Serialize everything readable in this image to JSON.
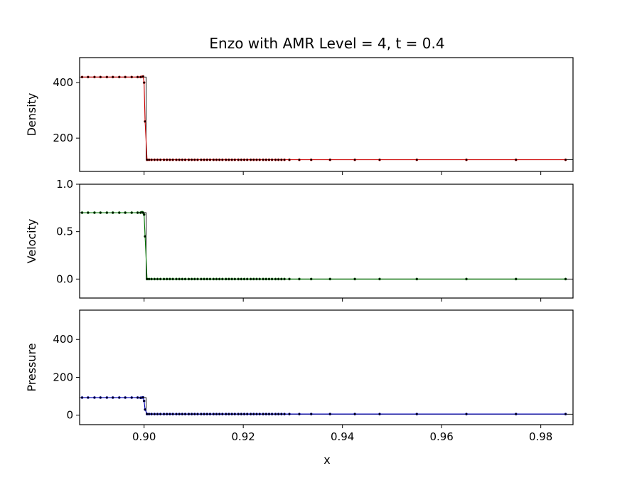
{
  "figure": {
    "title": "Enzo with AMR Level = 4, t = 0.4",
    "xlabel": "x"
  },
  "chart_data": [
    {
      "type": "line",
      "ylabel": "Density",
      "xlim": [
        0.887,
        0.9865
      ],
      "ylim": [
        80,
        490
      ],
      "xticks": [
        0.9,
        0.92,
        0.94,
        0.96,
        0.98
      ],
      "yticks": [
        200,
        400
      ],
      "color": "#cc0000",
      "exact": {
        "x": [
          0.887,
          0.9004,
          0.9004,
          0.9865
        ],
        "y": [
          420,
          420,
          122,
          122
        ]
      },
      "series": [
        {
          "x": [
            0.8875,
            0.8887,
            0.89,
            0.8912,
            0.8925,
            0.8937,
            0.895,
            0.8962,
            0.8975,
            0.8987,
            0.8993,
            0.8996,
            0.8998,
            0.9,
            0.9002,
            0.9006,
            0.901,
            0.9015,
            0.9021,
            0.9027,
            0.9033,
            0.904,
            0.9046,
            0.9052,
            0.9058,
            0.9065,
            0.9071,
            0.9077,
            0.9083,
            0.909,
            0.9096,
            0.9102,
            0.9108,
            0.9115,
            0.9121,
            0.9127,
            0.9133,
            0.914,
            0.9146,
            0.9152,
            0.9158,
            0.9165,
            0.9171,
            0.9177,
            0.9183,
            0.919,
            0.9196,
            0.9202,
            0.9208,
            0.9215,
            0.9221,
            0.9227,
            0.9233,
            0.924,
            0.9246,
            0.9252,
            0.9258,
            0.9265,
            0.9271,
            0.9277,
            0.9283,
            0.9293,
            0.9313,
            0.9337,
            0.9375,
            0.9425,
            0.9475,
            0.955,
            0.965,
            0.975,
            0.985
          ],
          "y": [
            420,
            420,
            420,
            420,
            420,
            420,
            420,
            420,
            420,
            420,
            420,
            421,
            422,
            400,
            260,
            122,
            122,
            122,
            122,
            122,
            122,
            122,
            122,
            122,
            122,
            122,
            122,
            122,
            122,
            122,
            122,
            122,
            122,
            122,
            122,
            122,
            122,
            122,
            122,
            122,
            122,
            122,
            122,
            122,
            122,
            122,
            122,
            122,
            122,
            122,
            122,
            122,
            122,
            122,
            122,
            122,
            122,
            122,
            122,
            122,
            122,
            122,
            122,
            122,
            122,
            122,
            122,
            122,
            122,
            122,
            122
          ]
        }
      ]
    },
    {
      "type": "line",
      "ylabel": "Velocity",
      "xlim": [
        0.887,
        0.9865
      ],
      "ylim": [
        -0.2,
        1.0
      ],
      "xticks": [
        0.9,
        0.92,
        0.94,
        0.96,
        0.98
      ],
      "yticks": [
        0.0,
        0.5,
        1.0
      ],
      "yticklabels": [
        "0.0",
        "0.5",
        "1.0"
      ],
      "color": "#007700",
      "exact": {
        "x": [
          0.887,
          0.9004,
          0.9004,
          0.9865
        ],
        "y": [
          0.7,
          0.7,
          0.0,
          0.0
        ]
      },
      "series": [
        {
          "x": [
            0.8875,
            0.8887,
            0.89,
            0.8912,
            0.8925,
            0.8937,
            0.895,
            0.8962,
            0.8975,
            0.8987,
            0.8993,
            0.8996,
            0.8998,
            0.9,
            0.9002,
            0.9006,
            0.901,
            0.9015,
            0.9021,
            0.9027,
            0.9033,
            0.904,
            0.9046,
            0.9052,
            0.9058,
            0.9065,
            0.9071,
            0.9077,
            0.9083,
            0.909,
            0.9096,
            0.9102,
            0.9108,
            0.9115,
            0.9121,
            0.9127,
            0.9133,
            0.914,
            0.9146,
            0.9152,
            0.9158,
            0.9165,
            0.9171,
            0.9177,
            0.9183,
            0.919,
            0.9196,
            0.9202,
            0.9208,
            0.9215,
            0.9221,
            0.9227,
            0.9233,
            0.924,
            0.9246,
            0.9252,
            0.9258,
            0.9265,
            0.9271,
            0.9277,
            0.9283,
            0.9293,
            0.9313,
            0.9337,
            0.9375,
            0.9425,
            0.9475,
            0.955,
            0.965,
            0.975,
            0.985
          ],
          "y": [
            0.7,
            0.7,
            0.7,
            0.7,
            0.7,
            0.7,
            0.7,
            0.7,
            0.7,
            0.7,
            0.7,
            0.705,
            0.7,
            0.68,
            0.45,
            0.0,
            0.0,
            0.0,
            0.0,
            0.0,
            0.0,
            0.0,
            0.0,
            0.0,
            0.0,
            0.0,
            0.0,
            0.0,
            0.0,
            0.0,
            0.0,
            0.0,
            0.0,
            0.0,
            0.0,
            0.0,
            0.0,
            0.0,
            0.0,
            0.0,
            0.0,
            0.0,
            0.0,
            0.0,
            0.0,
            0.0,
            0.0,
            0.0,
            0.0,
            0.0,
            0.0,
            0.0,
            0.0,
            0.0,
            0.0,
            0.0,
            0.0,
            0.0,
            0.0,
            0.0,
            0.0,
            0.0,
            0.0,
            0.0,
            0.0,
            0.0,
            0.0,
            0.0,
            0.0,
            0.0,
            0.0
          ]
        }
      ]
    },
    {
      "type": "line",
      "ylabel": "Pressure",
      "xlim": [
        0.887,
        0.9865
      ],
      "ylim": [
        -50,
        555
      ],
      "xticks": [
        0.9,
        0.92,
        0.94,
        0.96,
        0.98
      ],
      "xticklabels": [
        "0.90",
        "0.92",
        "0.94",
        "0.96",
        "0.98"
      ],
      "yticks": [
        0,
        200,
        400
      ],
      "color": "#0000bb",
      "exact": {
        "x": [
          0.887,
          0.9004,
          0.9004,
          0.9865
        ],
        "y": [
          93,
          93,
          5,
          5
        ]
      },
      "series": [
        {
          "x": [
            0.8875,
            0.8887,
            0.89,
            0.8912,
            0.8925,
            0.8937,
            0.895,
            0.8962,
            0.8975,
            0.8987,
            0.8993,
            0.8996,
            0.8998,
            0.9,
            0.9002,
            0.9006,
            0.901,
            0.9015,
            0.9021,
            0.9027,
            0.9033,
            0.904,
            0.9046,
            0.9052,
            0.9058,
            0.9065,
            0.9071,
            0.9077,
            0.9083,
            0.909,
            0.9096,
            0.9102,
            0.9108,
            0.9115,
            0.9121,
            0.9127,
            0.9133,
            0.914,
            0.9146,
            0.9152,
            0.9158,
            0.9165,
            0.9171,
            0.9177,
            0.9183,
            0.919,
            0.9196,
            0.9202,
            0.9208,
            0.9215,
            0.9221,
            0.9227,
            0.9233,
            0.924,
            0.9246,
            0.9252,
            0.9258,
            0.9265,
            0.9271,
            0.9277,
            0.9283,
            0.9293,
            0.9313,
            0.9337,
            0.9375,
            0.9425,
            0.9475,
            0.955,
            0.965,
            0.975,
            0.985
          ],
          "y": [
            93,
            93,
            93,
            93,
            93,
            93,
            93,
            93,
            93,
            93,
            92,
            93,
            94,
            75,
            30,
            6,
            6,
            6,
            6,
            6,
            6,
            6,
            6,
            6,
            6,
            6,
            6,
            6,
            6,
            6,
            6,
            6,
            6,
            6,
            6,
            6,
            6,
            6,
            6,
            6,
            6,
            6,
            6,
            6,
            6,
            6,
            6,
            6,
            6,
            6,
            6,
            6,
            6,
            6,
            6,
            6,
            6,
            6,
            6,
            6,
            6,
            6,
            6,
            6,
            6,
            6,
            6,
            6,
            6,
            6,
            6
          ]
        }
      ]
    }
  ]
}
